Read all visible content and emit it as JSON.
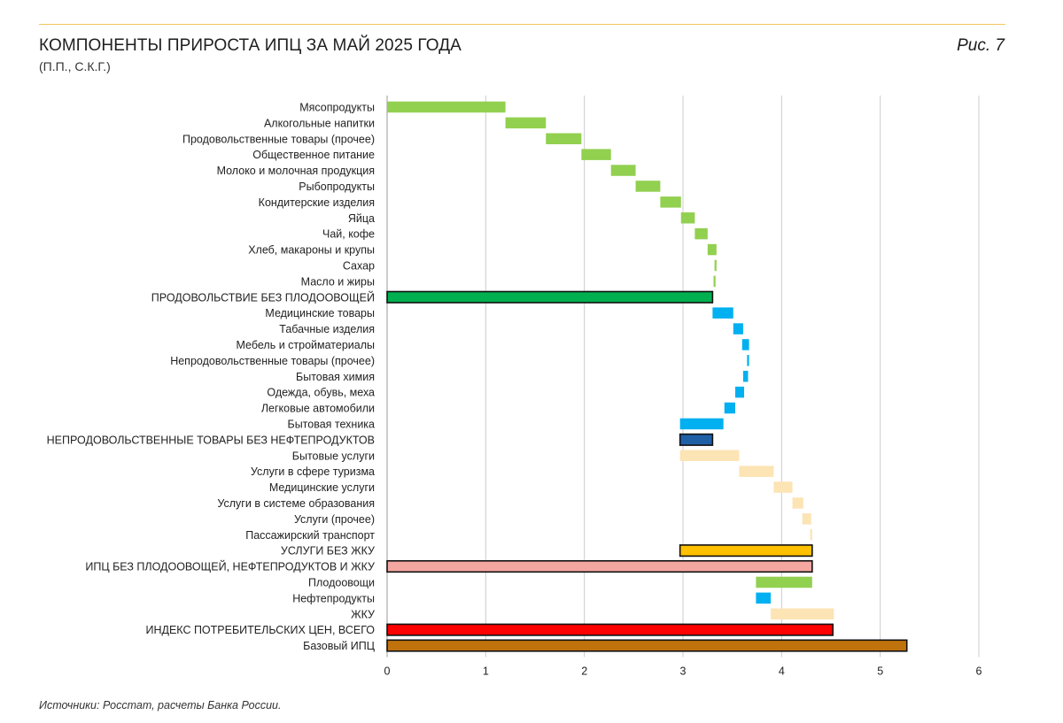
{
  "header": {
    "title": "КОМПОНЕНТЫ ПРИРОСТА ИПЦ ЗА МАЙ 2025 ГОДА",
    "subtitle": "(П.П., С.К.Г.)",
    "figure_label": "Рис. 7"
  },
  "footer": {
    "source": "Источники: Росстат, расчеты Банка России."
  },
  "colors": {
    "food": "#92d050",
    "food_total": "#00b050",
    "nonfood": "#00b0f0",
    "nonfood_total": "#1f5fa6",
    "services": "#fce4b4",
    "services_total": "#ffc000",
    "core_ex": "#f4a6a0",
    "cpi": "#ff0000",
    "base_cpi": "#c0720c",
    "grid": "#cccccc",
    "axis": "#999999"
  },
  "chart_data": {
    "type": "bar",
    "orientation": "horizontal",
    "subtype": "waterfall",
    "title": "КОМПОНЕНТЫ ПРИРОСТА ИПЦ ЗА МАЙ 2025 ГОДА",
    "subtitle": "(П.П., С.К.Г.)",
    "xlabel": "",
    "ylabel": "",
    "xlim": [
      0,
      6
    ],
    "xticks": [
      "0",
      "1",
      "2",
      "3",
      "4",
      "5",
      "6"
    ],
    "grid": true,
    "legend": "none",
    "bars": [
      {
        "label": "Мясопродукты",
        "start": 0,
        "end": 1.2,
        "color": "#92d050",
        "outline": false
      },
      {
        "label": "Алкогольные напитки",
        "start": 1.2,
        "end": 1.61,
        "color": "#92d050",
        "outline": false
      },
      {
        "label": "Продовольственные товары (прочее)",
        "start": 1.61,
        "end": 1.97,
        "color": "#92d050",
        "outline": false
      },
      {
        "label": "Общественное питание",
        "start": 1.97,
        "end": 2.27,
        "color": "#92d050",
        "outline": false
      },
      {
        "label": "Молоко и молочная продукция",
        "start": 2.27,
        "end": 2.52,
        "color": "#92d050",
        "outline": false
      },
      {
        "label": "Рыбопродукты",
        "start": 2.52,
        "end": 2.77,
        "color": "#92d050",
        "outline": false
      },
      {
        "label": "Кондитерские изделия",
        "start": 2.77,
        "end": 2.98,
        "color": "#92d050",
        "outline": false
      },
      {
        "label": "Яйца",
        "start": 2.98,
        "end": 3.12,
        "color": "#92d050",
        "outline": false
      },
      {
        "label": "Чай, кофе",
        "start": 3.12,
        "end": 3.25,
        "color": "#92d050",
        "outline": false
      },
      {
        "label": "Хлеб, макароны и крупы",
        "start": 3.25,
        "end": 3.34,
        "color": "#92d050",
        "outline": false
      },
      {
        "label": "Сахар",
        "start": 3.32,
        "end": 3.34,
        "color": "#92d050",
        "outline": false
      },
      {
        "label": "Масло и жиры",
        "start": 3.31,
        "end": 3.33,
        "color": "#92d050",
        "outline": false
      },
      {
        "label": "ПРОДОВОЛЬСТВИЕ БЕЗ ПЛОДООВОЩЕЙ",
        "start": 0,
        "end": 3.3,
        "color": "#00b050",
        "outline": true
      },
      {
        "label": "Медицинские товары",
        "start": 3.3,
        "end": 3.51,
        "color": "#00b0f0",
        "outline": false
      },
      {
        "label": "Табачные изделия",
        "start": 3.51,
        "end": 3.61,
        "color": "#00b0f0",
        "outline": false
      },
      {
        "label": "Мебель и стройматериалы",
        "start": 3.6,
        "end": 3.67,
        "color": "#00b0f0",
        "outline": false
      },
      {
        "label": "Непродовольственные товары (прочее)",
        "start": 3.65,
        "end": 3.67,
        "color": "#00b0f0",
        "outline": false
      },
      {
        "label": "Бытовая химия",
        "start": 3.61,
        "end": 3.66,
        "color": "#00b0f0",
        "outline": false
      },
      {
        "label": "Одежда, обувь, меха",
        "start": 3.53,
        "end": 3.62,
        "color": "#00b0f0",
        "outline": false
      },
      {
        "label": "Легковые автомобили",
        "start": 3.42,
        "end": 3.53,
        "color": "#00b0f0",
        "outline": false
      },
      {
        "label": "Бытовая техника",
        "start": 2.97,
        "end": 3.41,
        "color": "#00b0f0",
        "outline": false
      },
      {
        "label": "НЕПРОДОВОЛЬСТВЕННЫЕ ТОВАРЫ БЕЗ НЕФТЕПРОДУКТОВ",
        "start": 2.97,
        "end": 3.3,
        "color": "#1f5fa6",
        "outline": true
      },
      {
        "label": "Бытовые услуги",
        "start": 2.97,
        "end": 3.57,
        "color": "#fce4b4",
        "outline": false
      },
      {
        "label": "Услуги в сфере туризма",
        "start": 3.57,
        "end": 3.92,
        "color": "#fce4b4",
        "outline": false
      },
      {
        "label": "Медицинские услуги",
        "start": 3.92,
        "end": 4.11,
        "color": "#fce4b4",
        "outline": false
      },
      {
        "label": "Услуги в системе образования",
        "start": 4.11,
        "end": 4.22,
        "color": "#fce4b4",
        "outline": false
      },
      {
        "label": "Услуги (прочее)",
        "start": 4.21,
        "end": 4.3,
        "color": "#fce4b4",
        "outline": false
      },
      {
        "label": "Пассажирский транспорт",
        "start": 4.29,
        "end": 4.31,
        "color": "#fce4b4",
        "outline": false
      },
      {
        "label": "УСЛУГИ БЕЗ ЖКУ",
        "start": 2.97,
        "end": 4.31,
        "color": "#ffc000",
        "outline": true
      },
      {
        "label": "ИПЦ БЕЗ ПЛОДООВОЩЕЙ, НЕФТЕПРОДУКТОВ И ЖКУ",
        "start": 0,
        "end": 4.31,
        "color": "#f4a6a0",
        "outline": true
      },
      {
        "label": "Плодоовощи",
        "start": 3.74,
        "end": 4.31,
        "color": "#92d050",
        "outline": false
      },
      {
        "label": "Нефтепродукты",
        "start": 3.74,
        "end": 3.89,
        "color": "#00b0f0",
        "outline": false
      },
      {
        "label": "ЖКУ",
        "start": 3.89,
        "end": 4.53,
        "color": "#fce4b4",
        "outline": false
      },
      {
        "label": "ИНДЕКС ПОТРЕБИТЕЛЬСКИХ ЦЕН, ВСЕГО",
        "start": 0,
        "end": 4.52,
        "color": "#ff0000",
        "outline": true
      },
      {
        "label": "Базовый ИПЦ",
        "start": 0,
        "end": 5.27,
        "color": "#c0720c",
        "outline": true
      }
    ]
  }
}
